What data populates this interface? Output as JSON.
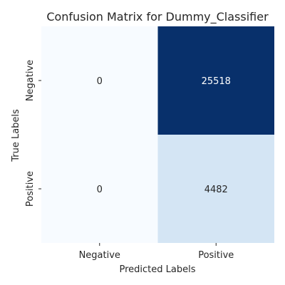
{
  "chart_data": {
    "type": "heatmap",
    "title": "Confusion Matrix for Dummy_Classifier",
    "xlabel": "Predicted Labels",
    "ylabel": "True Labels",
    "x_categories": [
      "Negative",
      "Positive"
    ],
    "y_categories": [
      "Negative",
      "Positive"
    ],
    "values": [
      [
        0,
        25518
      ],
      [
        0,
        4482
      ]
    ],
    "colormap": "Blues",
    "colorbar": false,
    "grid": false,
    "colors": {
      "low": "#f7fbff",
      "high": "#08306b",
      "text_dark": "#262626",
      "text_light": "#ffffff"
    }
  }
}
